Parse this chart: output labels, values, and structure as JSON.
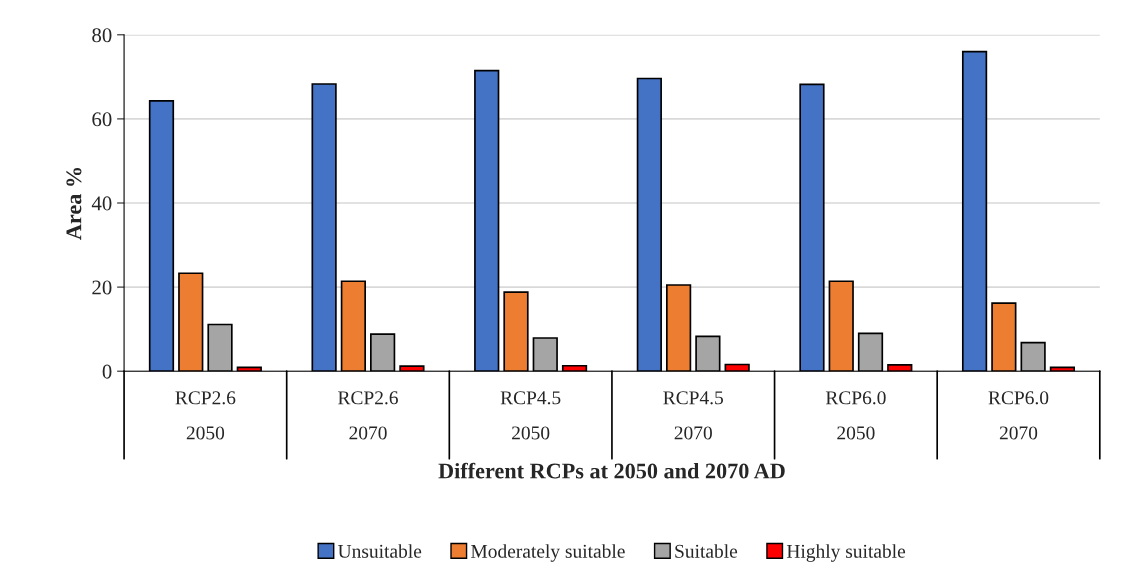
{
  "chart_data": {
    "type": "bar",
    "xlabel": "Different RCPs at 2050 and 2070 AD",
    "ylabel": "Area %",
    "categories": [
      "RCP2.6\n2050",
      "RCP2.6\n2070",
      "RCP4.5\n2050",
      "RCP4.5\n2070",
      "RCP6.0\n2050",
      "RCP6.0\n2070"
    ],
    "series": [
      {
        "name": "Unsuitable",
        "color": "#4472c4",
        "values": [
          64.3,
          68.3,
          71.5,
          69.6,
          68.2,
          76.0
        ]
      },
      {
        "name": "Moderately suitable",
        "color": "#ed7d31",
        "values": [
          23.3,
          21.4,
          18.8,
          20.5,
          21.4,
          16.2
        ]
      },
      {
        "name": "Suitable",
        "color": "#a5a5a5",
        "values": [
          11.1,
          8.8,
          7.9,
          8.3,
          9.0,
          6.8
        ]
      },
      {
        "name": "Highly suitable",
        "color": "#ff0000",
        "values": [
          0.9,
          1.2,
          1.3,
          1.6,
          1.5,
          0.9
        ]
      }
    ],
    "ylim": [
      0,
      80
    ],
    "yticks": [
      0,
      20,
      40,
      60,
      80
    ],
    "grid": "y",
    "legend": "bottom"
  }
}
